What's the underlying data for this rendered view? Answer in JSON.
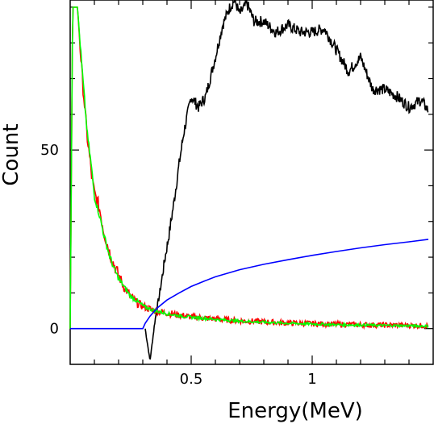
{
  "chart_data": {
    "type": "line",
    "title": "",
    "xlabel": "Energy(MeV)",
    "ylabel": "Count",
    "xlim": [
      0.0,
      1.5
    ],
    "ylim": [
      -10,
      92
    ],
    "x_ticks": [
      {
        "value": 0.5,
        "label": "0.5"
      },
      {
        "value": 1.0,
        "label": "1"
      }
    ],
    "y_ticks": [
      {
        "value": 0,
        "label": "0"
      },
      {
        "value": 50,
        "label": "50"
      }
    ],
    "x_minor_ticks": [
      0.1,
      0.2,
      0.3,
      0.4,
      0.6,
      0.7,
      0.8,
      0.9,
      1.1,
      1.2,
      1.3,
      1.4
    ],
    "y_minor_ticks": [
      10,
      20,
      30,
      40,
      60,
      70,
      80,
      90
    ],
    "grid": false,
    "legend": "none",
    "series": [
      {
        "color": "#000000",
        "x": [
          0.31,
          0.33,
          0.35,
          0.37,
          0.39,
          0.41,
          0.43,
          0.45,
          0.47,
          0.5,
          0.53,
          0.56,
          0.6,
          0.63,
          0.66,
          0.68,
          0.7,
          0.73,
          0.76,
          0.8,
          0.85,
          0.9,
          0.95,
          1.0,
          1.05,
          1.1,
          1.15,
          1.2,
          1.25,
          1.3,
          1.35,
          1.4,
          1.45,
          1.48
        ],
        "y": [
          0,
          -9,
          2,
          10,
          19,
          27,
          36,
          46,
          55,
          65,
          62,
          65,
          76,
          85,
          90,
          92,
          88,
          91,
          86,
          86,
          83,
          85,
          83,
          83,
          84,
          78,
          72,
          76,
          67,
          67,
          65,
          62,
          64,
          61
        ]
      },
      {
        "color": "#ff0000",
        "x": [
          0.0,
          0.01,
          0.02,
          0.03,
          0.05,
          0.07,
          0.09,
          0.1,
          0.12,
          0.14,
          0.16,
          0.18,
          0.2,
          0.22,
          0.25,
          0.28,
          0.31,
          0.35,
          0.4,
          0.45,
          0.5,
          0.6,
          0.7,
          0.8,
          0.9,
          1.0,
          1.1,
          1.2,
          1.3,
          1.4,
          1.48
        ],
        "y": [
          0,
          90,
          90,
          90,
          70,
          54,
          42,
          38,
          34,
          27,
          22,
          18,
          15,
          12,
          9,
          7,
          6,
          5,
          4.4,
          3.8,
          3.3,
          2.7,
          2.2,
          1.9,
          1.6,
          1.4,
          1.2,
          1.1,
          1.0,
          0.9,
          0.8
        ]
      },
      {
        "color": "#00ff00",
        "x": [
          0.0,
          0.01,
          0.02,
          0.03,
          0.05,
          0.07,
          0.09,
          0.1,
          0.12,
          0.14,
          0.16,
          0.18,
          0.2,
          0.22,
          0.25,
          0.28,
          0.31,
          0.35,
          0.4,
          0.45,
          0.5,
          0.6,
          0.7,
          0.8,
          0.9,
          1.0,
          1.1,
          1.2,
          1.3,
          1.4,
          1.48
        ],
        "y": [
          0,
          90,
          90,
          90,
          72,
          55,
          44,
          37,
          32,
          26,
          21,
          17,
          14,
          12,
          9,
          7.5,
          6,
          5,
          4.2,
          3.6,
          3.2,
          2.6,
          2.1,
          1.8,
          1.5,
          1.3,
          1.1,
          1.0,
          0.9,
          0.8,
          0.7
        ]
      },
      {
        "color": "#0000ff",
        "x": [
          0.0,
          0.2,
          0.3,
          0.31,
          0.33,
          0.36,
          0.4,
          0.45,
          0.5,
          0.55,
          0.6,
          0.7,
          0.8,
          0.9,
          1.0,
          1.1,
          1.2,
          1.3,
          1.4,
          1.48
        ],
        "y": [
          0,
          0,
          0,
          1.5,
          3.5,
          5.8,
          8,
          10,
          11.8,
          13.2,
          14.5,
          16.5,
          18,
          19.3,
          20.5,
          21.6,
          22.6,
          23.5,
          24.3,
          25
        ]
      }
    ]
  }
}
